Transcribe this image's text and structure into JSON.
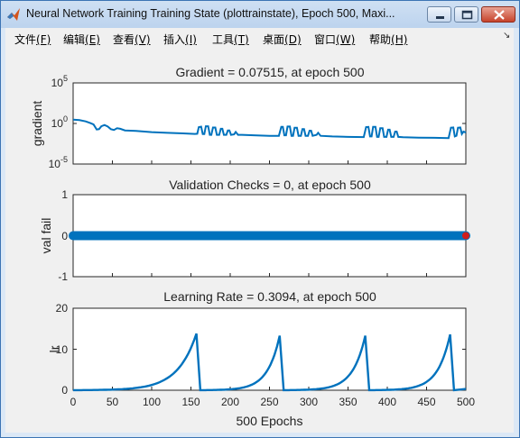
{
  "window": {
    "title": "Neural Network Training Training State (plottrainstate), Epoch 500, Maxi...",
    "menu": [
      {
        "label": "文件",
        "key": "(F)"
      },
      {
        "label": "编辑",
        "key": "(E)"
      },
      {
        "label": "查看",
        "key": "(V)"
      },
      {
        "label": "插入",
        "key": "(I)"
      },
      {
        "label": "工具",
        "key": "(T)"
      },
      {
        "label": "桌面",
        "key": "(D)"
      },
      {
        "label": "窗口",
        "key": "(W)"
      },
      {
        "label": "帮助",
        "key": "(H)"
      }
    ]
  },
  "chart_data": [
    {
      "type": "line",
      "title": "Gradient = 0.07515, at epoch 500",
      "ylabel": "gradient",
      "yscale": "log",
      "ylim": [
        1e-05,
        100000
      ],
      "xlim": [
        0,
        500
      ],
      "yticks": [
        {
          "base": "10",
          "exp": "5"
        },
        {
          "base": "10",
          "exp": "0"
        },
        {
          "base": "10",
          "exp": "-5"
        }
      ],
      "color": "#0072bd",
      "points": [
        [
          0,
          3.0
        ],
        [
          8,
          2.6
        ],
        [
          16,
          1.8
        ],
        [
          22,
          1.1
        ],
        [
          26,
          0.75
        ],
        [
          30,
          0.18
        ],
        [
          33,
          0.2
        ],
        [
          36,
          0.45
        ],
        [
          40,
          0.65
        ],
        [
          44,
          0.42
        ],
        [
          48,
          0.2
        ],
        [
          52,
          0.16
        ],
        [
          56,
          0.26
        ],
        [
          60,
          0.22
        ],
        [
          66,
          0.14
        ],
        [
          80,
          0.12
        ],
        [
          100,
          0.085
        ],
        [
          120,
          0.07
        ],
        [
          140,
          0.06
        ],
        [
          155,
          0.052
        ],
        [
          158,
          0.054
        ],
        [
          160,
          0.35
        ],
        [
          163,
          0.4
        ],
        [
          165,
          0.05
        ],
        [
          167,
          0.05
        ],
        [
          169,
          0.45
        ],
        [
          172,
          0.45
        ],
        [
          174,
          0.04
        ],
        [
          176,
          0.04
        ],
        [
          178,
          0.32
        ],
        [
          181,
          0.32
        ],
        [
          183,
          0.04
        ],
        [
          186,
          0.04
        ],
        [
          188,
          0.22
        ],
        [
          190,
          0.22
        ],
        [
          192,
          0.04
        ],
        [
          195,
          0.04
        ],
        [
          197,
          0.14
        ],
        [
          199,
          0.14
        ],
        [
          201,
          0.04
        ],
        [
          205,
          0.045
        ],
        [
          207,
          0.09
        ],
        [
          210,
          0.04
        ],
        [
          215,
          0.04
        ],
        [
          230,
          0.035
        ],
        [
          250,
          0.03
        ],
        [
          262,
          0.03
        ],
        [
          265,
          0.38
        ],
        [
          267,
          0.38
        ],
        [
          269,
          0.035
        ],
        [
          271,
          0.035
        ],
        [
          273,
          0.42
        ],
        [
          276,
          0.42
        ],
        [
          278,
          0.03
        ],
        [
          280,
          0.03
        ],
        [
          282,
          0.3
        ],
        [
          285,
          0.3
        ],
        [
          287,
          0.03
        ],
        [
          290,
          0.03
        ],
        [
          292,
          0.2
        ],
        [
          294,
          0.2
        ],
        [
          296,
          0.03
        ],
        [
          299,
          0.03
        ],
        [
          301,
          0.13
        ],
        [
          303,
          0.13
        ],
        [
          305,
          0.03
        ],
        [
          310,
          0.04
        ],
        [
          312,
          0.07
        ],
        [
          315,
          0.03
        ],
        [
          330,
          0.025
        ],
        [
          350,
          0.022
        ],
        [
          370,
          0.021
        ],
        [
          373,
          0.35
        ],
        [
          376,
          0.38
        ],
        [
          378,
          0.025
        ],
        [
          380,
          0.025
        ],
        [
          382,
          0.38
        ],
        [
          385,
          0.38
        ],
        [
          387,
          0.022
        ],
        [
          389,
          0.022
        ],
        [
          391,
          0.26
        ],
        [
          394,
          0.26
        ],
        [
          396,
          0.022
        ],
        [
          399,
          0.022
        ],
        [
          401,
          0.17
        ],
        [
          403,
          0.17
        ],
        [
          405,
          0.022
        ],
        [
          408,
          0.022
        ],
        [
          410,
          0.1
        ],
        [
          412,
          0.1
        ],
        [
          414,
          0.022
        ],
        [
          420,
          0.02
        ],
        [
          440,
          0.018
        ],
        [
          460,
          0.017
        ],
        [
          478,
          0.016
        ],
        [
          481,
          0.3
        ],
        [
          484,
          0.32
        ],
        [
          486,
          0.025
        ],
        [
          488,
          0.03
        ],
        [
          490,
          0.3
        ],
        [
          493,
          0.32
        ],
        [
          495,
          0.05
        ],
        [
          497,
          0.1
        ],
        [
          500,
          0.07515
        ]
      ]
    },
    {
      "type": "scatter",
      "title": "Validation Checks = 0, at epoch 500",
      "ylabel": "val fail",
      "ylim": [
        -1,
        1
      ],
      "xlim": [
        0,
        500
      ],
      "yticks": [
        "1",
        "0",
        "-1"
      ],
      "series_value": 0,
      "x_range": [
        0,
        500
      ],
      "color": "#0072bd",
      "final_marker": {
        "x": 500,
        "y": 0,
        "color": "#d01c1c"
      }
    },
    {
      "type": "line",
      "title": "Learning Rate = 0.3094, at epoch 500",
      "ylabel": "lr",
      "xlabel": "500 Epochs",
      "ylim": [
        0,
        20
      ],
      "xlim": [
        0,
        500
      ],
      "yticks": [
        "20",
        "10",
        "0"
      ],
      "xticks": [
        "0",
        "50",
        "100",
        "150",
        "200",
        "250",
        "300",
        "350",
        "400",
        "450",
        "500"
      ],
      "color": "#0072bd",
      "cycles": [
        {
          "start": 0,
          "peak_x": 157,
          "peak_y": 13.8,
          "end": 162
        },
        {
          "start": 162,
          "peak_x": 263,
          "peak_y": 13.3,
          "end": 268
        },
        {
          "start": 268,
          "peak_x": 372,
          "peak_y": 13.3,
          "end": 377
        },
        {
          "start": 377,
          "peak_x": 480,
          "peak_y": 13.6,
          "end": 485
        }
      ],
      "final": {
        "x": 500,
        "y": 0.3094
      }
    }
  ]
}
